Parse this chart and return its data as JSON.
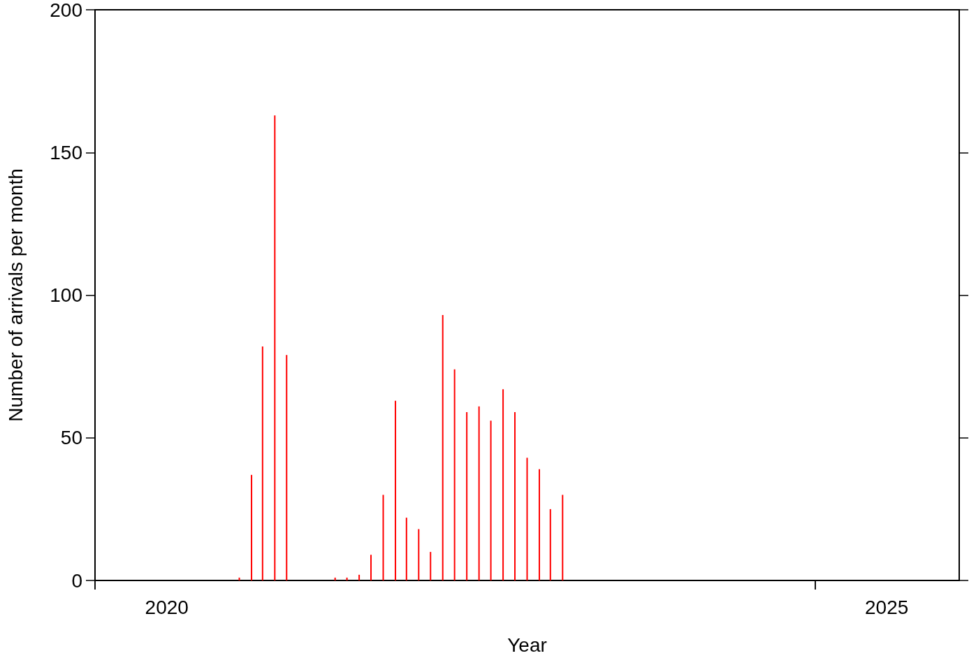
{
  "chart_data": {
    "type": "bar",
    "xlabel": "Year",
    "ylabel": "Number of arrivals per month",
    "x": [
      "2021-01",
      "2021-02",
      "2021-03",
      "2021-04",
      "2021-05",
      "2021-09",
      "2021-10",
      "2021-11",
      "2021-12",
      "2022-01",
      "2022-02",
      "2022-03",
      "2022-04",
      "2022-05",
      "2022-06",
      "2022-07",
      "2022-08",
      "2022-09",
      "2022-10",
      "2022-11",
      "2022-12",
      "2023-01",
      "2023-02",
      "2023-03",
      "2023-04"
    ],
    "values": [
      1,
      37,
      82,
      163,
      79,
      1,
      1,
      2,
      9,
      30,
      63,
      22,
      18,
      10,
      93,
      74,
      59,
      61,
      56,
      67,
      59,
      43,
      39,
      25,
      30
    ],
    "color": "#ff0000",
    "xlim": [
      "2020-01-01",
      "2026-01-01"
    ],
    "xticks": [
      {
        "value": "2020-01-01",
        "label": null
      },
      {
        "value": "2020-07-01",
        "label": "2020"
      },
      {
        "value": "2025-01-01",
        "label": null
      },
      {
        "value": "2025-07-01",
        "label": "2025"
      }
    ],
    "ylim": [
      0,
      200
    ],
    "yticks": [
      0,
      50,
      100,
      150,
      200
    ],
    "grid": false
  }
}
